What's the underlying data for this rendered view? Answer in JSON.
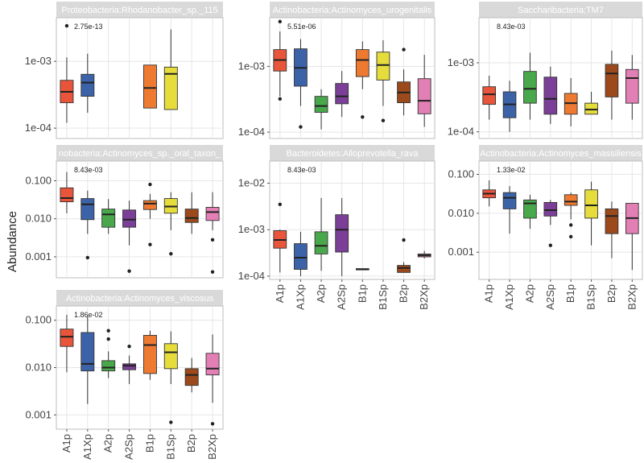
{
  "chart_data": {
    "type": "boxplot",
    "y_axis_label": "Abundance",
    "y_scale": "log10",
    "groups": [
      "A1p",
      "A1Xp",
      "A2p",
      "A2Sp",
      "B1p",
      "B1Sp",
      "B2p",
      "B2Xp"
    ],
    "colors": {
      "A1p": "#e8553a",
      "A1Xp": "#3c63a8",
      "A2p": "#4aa84c",
      "A2Sp": "#7b3f98",
      "B1p": "#ee7a31",
      "B1Sp": "#e6dd3c",
      "B2p": "#9c4a1c",
      "B2Xp": "#e27fb5"
    },
    "panels": [
      {
        "title": "Proteobacteria:Rhodanobacter_sp._115",
        "annotation": "2.75e-13",
        "ylim": [
          7e-05,
          0.0045
        ],
        "yticks": [
          {
            "v": 0.001,
            "label": "1e-03"
          },
          {
            "v": 0.0001,
            "label": "1e-04"
          }
        ],
        "boxes": [
          {
            "group": "A1p",
            "q1": 0.00024,
            "median": 0.00035,
            "q3": 0.00052,
            "low": 0.00012,
            "high": 0.00115,
            "outliers": [
              0.0034
            ]
          },
          {
            "group": "A1Xp",
            "q1": 0.0003,
            "median": 0.00048,
            "q3": 0.00064,
            "low": 0.00017,
            "high": 0.0013,
            "outliers": []
          },
          {
            "group": "B1p",
            "q1": 0.0002,
            "median": 0.0004,
            "q3": 0.00088,
            "low": 0.0002,
            "high": 0.00088,
            "outliers": []
          },
          {
            "group": "B1Sp",
            "q1": 0.00019,
            "median": 0.00065,
            "q3": 0.00082,
            "low": 0.00019,
            "high": 0.003,
            "outliers": []
          }
        ]
      },
      {
        "title": "Actinobacteria:Actinomyces_urogenitalis",
        "annotation": "5.51e-06",
        "ylim": [
          8e-05,
          0.0055
        ],
        "yticks": [
          {
            "v": 0.001,
            "label": "1e-03"
          },
          {
            "v": 0.0001,
            "label": "1e-04"
          }
        ],
        "boxes": [
          {
            "group": "A1p",
            "q1": 0.00085,
            "median": 0.00125,
            "q3": 0.0018,
            "low": 0.00035,
            "high": 0.0034,
            "outliers": [
              0.00032,
              0.0048
            ]
          },
          {
            "group": "A1Xp",
            "q1": 0.0005,
            "median": 0.00095,
            "q3": 0.00185,
            "low": 0.00025,
            "high": 0.0026,
            "outliers": [
              0.00012
            ]
          },
          {
            "group": "A2p",
            "q1": 0.0002,
            "median": 0.00025,
            "q3": 0.00035,
            "low": 0.00011,
            "high": 0.00045,
            "outliers": []
          },
          {
            "group": "A2Sp",
            "q1": 0.00027,
            "median": 0.00035,
            "q3": 0.00055,
            "low": 0.00017,
            "high": 0.00085,
            "outliers": []
          },
          {
            "group": "B1p",
            "q1": 0.0007,
            "median": 0.00125,
            "q3": 0.0018,
            "low": 0.00045,
            "high": 0.0024,
            "outliers": [
              0.00017
            ]
          },
          {
            "group": "B1Sp",
            "q1": 0.00062,
            "median": 0.00105,
            "q3": 0.00165,
            "low": 0.00025,
            "high": 0.0025,
            "outliers": [
              0.00015
            ]
          },
          {
            "group": "B2p",
            "q1": 0.00028,
            "median": 0.0004,
            "q3": 0.00058,
            "low": 0.00018,
            "high": 0.0009,
            "outliers": [
              0.0018
            ]
          },
          {
            "group": "B2Xp",
            "q1": 0.00019,
            "median": 0.0003,
            "q3": 0.00065,
            "low": 0.00012,
            "high": 0.0015,
            "outliers": []
          }
        ]
      },
      {
        "title": "Saccharibacteria;TM7",
        "annotation": "8.43e-03",
        "ylim": [
          8e-05,
          0.0045
        ],
        "yticks": [
          {
            "v": 0.001,
            "label": "1e-03"
          },
          {
            "v": 0.0001,
            "label": "1e-04"
          }
        ],
        "boxes": [
          {
            "group": "A1p",
            "q1": 0.00025,
            "median": 0.00035,
            "q3": 0.00045,
            "low": 0.00015,
            "high": 0.00065,
            "outliers": []
          },
          {
            "group": "A1Xp",
            "q1": 0.00016,
            "median": 0.00025,
            "q3": 0.00038,
            "low": 0.0001,
            "high": 0.00055,
            "outliers": []
          },
          {
            "group": "A2p",
            "q1": 0.00026,
            "median": 0.00042,
            "q3": 0.00075,
            "low": 0.00015,
            "high": 0.0014,
            "outliers": []
          },
          {
            "group": "A2Sp",
            "q1": 0.00018,
            "median": 0.0003,
            "q3": 0.00062,
            "low": 0.00013,
            "high": 0.00088,
            "outliers": []
          },
          {
            "group": "B1p",
            "q1": 0.00018,
            "median": 0.00026,
            "q3": 0.00036,
            "low": 0.00012,
            "high": 0.0006,
            "outliers": []
          },
          {
            "group": "B1Sp",
            "q1": 0.00018,
            "median": 0.00021,
            "q3": 0.00026,
            "low": 0.00018,
            "high": 0.00038,
            "outliers": []
          },
          {
            "group": "B2p",
            "q1": 0.00032,
            "median": 0.0007,
            "q3": 0.00095,
            "low": 0.00015,
            "high": 0.0015,
            "outliers": []
          },
          {
            "group": "B2Xp",
            "q1": 0.00026,
            "median": 0.0006,
            "q3": 0.0008,
            "low": 0.00015,
            "high": 0.0013,
            "outliers": []
          }
        ]
      },
      {
        "title": "nobacteria:Actinomyces_sp._oral_taxon_",
        "annotation": "8.43e-03",
        "ylim": [
          0.00028,
          0.33
        ],
        "yticks": [
          {
            "v": 0.1,
            "label": "0.100"
          },
          {
            "v": 0.01,
            "label": "0.010"
          },
          {
            "v": 0.001,
            "label": "0.001"
          }
        ],
        "boxes": [
          {
            "group": "A1p",
            "q1": 0.028,
            "median": 0.035,
            "q3": 0.065,
            "low": 0.014,
            "high": 0.17,
            "outliers": []
          },
          {
            "group": "A1Xp",
            "q1": 0.0095,
            "median": 0.024,
            "q3": 0.034,
            "low": 0.004,
            "high": 0.055,
            "outliers": [
              0.00095
            ]
          },
          {
            "group": "A2p",
            "q1": 0.006,
            "median": 0.013,
            "q3": 0.018,
            "low": 0.004,
            "high": 0.033,
            "outliers": []
          },
          {
            "group": "A2Sp",
            "q1": 0.006,
            "median": 0.0095,
            "q3": 0.017,
            "low": 0.002,
            "high": 0.03,
            "outliers": [
              0.00042
            ]
          },
          {
            "group": "B1p",
            "q1": 0.0175,
            "median": 0.025,
            "q3": 0.03,
            "low": 0.01,
            "high": 0.045,
            "outliers": [
              0.0021,
              0.08
            ]
          },
          {
            "group": "B1Sp",
            "q1": 0.014,
            "median": 0.021,
            "q3": 0.034,
            "low": 0.005,
            "high": 0.05,
            "outliers": [
              0.0012
            ]
          },
          {
            "group": "B2p",
            "q1": 0.008,
            "median": 0.0105,
            "q3": 0.018,
            "low": 0.004,
            "high": 0.05,
            "outliers": []
          },
          {
            "group": "B2Xp",
            "q1": 0.009,
            "median": 0.015,
            "q3": 0.02,
            "low": 0.005,
            "high": 0.05,
            "outliers": [
              0.0028,
              0.0004
            ]
          }
        ]
      },
      {
        "title": "Bacteroidetes:Alloprevotella_rava",
        "annotation": "8.43e-03",
        "ylim": [
          8.5e-05,
          0.03
        ],
        "yticks": [
          {
            "v": 0.01,
            "label": "1e-02"
          },
          {
            "v": 0.001,
            "label": "1e-03"
          },
          {
            "v": 0.0001,
            "label": "1e-04"
          }
        ],
        "boxes": [
          {
            "group": "A1p",
            "q1": 0.0004,
            "median": 0.0006,
            "q3": 0.00095,
            "low": 0.00012,
            "high": 0.001,
            "outliers": [
              0.0035
            ]
          },
          {
            "group": "A1Xp",
            "q1": 0.00014,
            "median": 0.00025,
            "q3": 0.0005,
            "low": 0.0001,
            "high": 0.0009,
            "outliers": []
          },
          {
            "group": "A2p",
            "q1": 0.0003,
            "median": 0.00045,
            "q3": 0.0009,
            "low": 0.00013,
            "high": 0.0048,
            "outliers": []
          },
          {
            "group": "A2Sp",
            "q1": 0.00033,
            "median": 0.001,
            "q3": 0.0021,
            "low": 0.0001,
            "high": 0.0048,
            "outliers": []
          },
          {
            "group": "B1p",
            "q1": 0.00014,
            "median": 0.00014,
            "q3": 0.000145,
            "low": 0.00014,
            "high": 0.000145,
            "outliers": []
          },
          {
            "group": "B2p",
            "q1": 0.00012,
            "median": 0.00015,
            "q3": 0.00017,
            "low": 0.00012,
            "high": 0.0002,
            "outliers": [
              0.0006
            ]
          },
          {
            "group": "B2Xp",
            "q1": 0.00026,
            "median": 0.00028,
            "q3": 0.0003,
            "low": 0.00024,
            "high": 0.00035,
            "outliers": []
          }
        ]
      },
      {
        "title": "Actinobacteria:Actinomyces_massiliensis",
        "annotation": "1.33e-02",
        "ylim": [
          0.0002,
          0.22
        ],
        "yticks": [
          {
            "v": 0.1,
            "label": "0.100"
          },
          {
            "v": 0.01,
            "label": "0.010"
          },
          {
            "v": 0.001,
            "label": "0.001"
          }
        ],
        "boxes": [
          {
            "group": "A1p",
            "q1": 0.025,
            "median": 0.032,
            "q3": 0.04,
            "low": 0.015,
            "high": 0.07,
            "outliers": []
          },
          {
            "group": "A1Xp",
            "q1": 0.013,
            "median": 0.025,
            "q3": 0.034,
            "low": 0.003,
            "high": 0.05,
            "outliers": []
          },
          {
            "group": "A2p",
            "q1": 0.0075,
            "median": 0.018,
            "q3": 0.022,
            "low": 0.004,
            "high": 0.03,
            "outliers": []
          },
          {
            "group": "A2Sp",
            "q1": 0.0085,
            "median": 0.012,
            "q3": 0.019,
            "low": 0.005,
            "high": 0.022,
            "outliers": [
              0.0015
            ]
          },
          {
            "group": "B1p",
            "q1": 0.016,
            "median": 0.02,
            "q3": 0.03,
            "low": 0.007,
            "high": 0.034,
            "outliers": [
              0.005,
              0.0025
            ]
          },
          {
            "group": "B1Sp",
            "q1": 0.0075,
            "median": 0.016,
            "q3": 0.04,
            "low": 0.0015,
            "high": 0.065,
            "outliers": []
          },
          {
            "group": "B2p",
            "q1": 0.003,
            "median": 0.0085,
            "q3": 0.013,
            "low": 0.0007,
            "high": 0.02,
            "outliers": []
          },
          {
            "group": "B2Xp",
            "q1": 0.003,
            "median": 0.0075,
            "q3": 0.018,
            "low": 0.00035,
            "high": 0.018,
            "outliers": []
          }
        ]
      },
      {
        "title": "Actinobacteria:Actinomyces_viscosus",
        "annotation": "1.86e-02",
        "ylim": [
          0.0005,
          0.2
        ],
        "yticks": [
          {
            "v": 0.1,
            "label": "0.100"
          },
          {
            "v": 0.01,
            "label": "0.010"
          },
          {
            "v": 0.001,
            "label": "0.001"
          }
        ],
        "boxes": [
          {
            "group": "A1p",
            "q1": 0.028,
            "median": 0.045,
            "q3": 0.065,
            "low": 0.008,
            "high": 0.13,
            "outliers": []
          },
          {
            "group": "A1Xp",
            "q1": 0.0085,
            "median": 0.012,
            "q3": 0.055,
            "low": 0.0017,
            "high": 0.12,
            "outliers": []
          },
          {
            "group": "A2p",
            "q1": 0.0085,
            "median": 0.01,
            "q3": 0.014,
            "low": 0.006,
            "high": 0.022,
            "outliers": [
              0.06,
              0.04
            ]
          },
          {
            "group": "A2Sp",
            "q1": 0.009,
            "median": 0.011,
            "q3": 0.012,
            "low": 0.0045,
            "high": 0.018,
            "outliers": [
              0.028
            ]
          },
          {
            "group": "B1p",
            "q1": 0.0075,
            "median": 0.03,
            "q3": 0.048,
            "low": 0.0055,
            "high": 0.06,
            "outliers": []
          },
          {
            "group": "B1Sp",
            "q1": 0.0095,
            "median": 0.021,
            "q3": 0.032,
            "low": 0.0045,
            "high": 0.058,
            "outliers": [
              0.0007
            ]
          },
          {
            "group": "B2p",
            "q1": 0.0042,
            "median": 0.007,
            "q3": 0.0095,
            "low": 0.003,
            "high": 0.016,
            "outliers": []
          },
          {
            "group": "B2Xp",
            "q1": 0.007,
            "median": 0.0095,
            "q3": 0.02,
            "low": 0.0018,
            "high": 0.05,
            "outliers": [
              0.00065
            ]
          }
        ]
      }
    ]
  }
}
